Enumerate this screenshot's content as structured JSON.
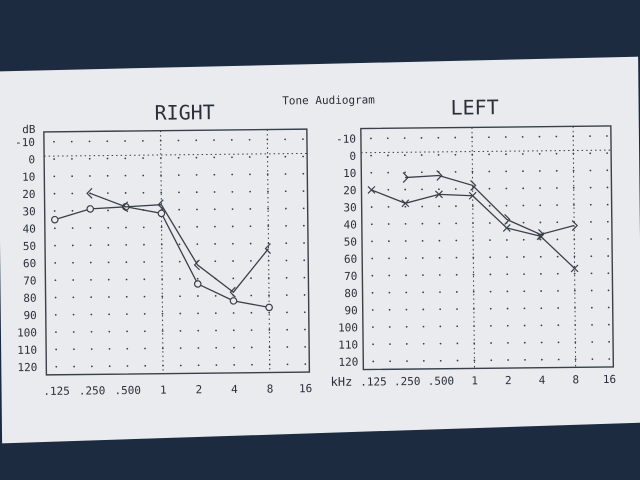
{
  "title": "Tone Audiogram",
  "ylabel": "dB",
  "xunit": "kHz",
  "ytick_labels": [
    "-10",
    "0",
    "10",
    "20",
    "30",
    "40",
    "50",
    "60",
    "70",
    "80",
    "90",
    "100",
    "110",
    "120"
  ],
  "xtick_labels": [
    ".125",
    ".250",
    ".500",
    "1",
    "2",
    "4",
    "8",
    "16"
  ],
  "colors": {
    "paper": "#e9ebee",
    "ink": "#3a3f4a",
    "background": "#1c2b40"
  },
  "chart_data": [
    {
      "type": "line",
      "title": "RIGHT",
      "xlabel": "",
      "ylabel": "dB",
      "x_scale": "log2",
      "categories": [
        0.125,
        0.25,
        0.5,
        1,
        2,
        4,
        8,
        16
      ],
      "ylim": [
        -10,
        120
      ],
      "y_inverted": true,
      "grid": true,
      "series": [
        {
          "marker": "circle",
          "x": [
            0.125,
            0.25,
            0.5,
            1,
            2,
            4,
            8
          ],
          "values": [
            35,
            29,
            28,
            32,
            73,
            83,
            87
          ]
        },
        {
          "marker": "bracket",
          "x": [
            0.25,
            0.5,
            1,
            2,
            4,
            8
          ],
          "values": [
            20,
            28,
            27,
            62,
            78,
            53
          ]
        }
      ]
    },
    {
      "type": "line",
      "title": "LEFT",
      "xlabel": "kHz",
      "ylabel": "",
      "x_scale": "log2",
      "categories": [
        0.125,
        0.25,
        0.5,
        1,
        2,
        4,
        8,
        16
      ],
      "ylim": [
        -10,
        120
      ],
      "y_inverted": true,
      "grid": true,
      "series": [
        {
          "marker": "cross",
          "x": [
            0.125,
            0.25,
            0.5,
            1,
            2,
            4,
            8
          ],
          "values": [
            20,
            28,
            23,
            24,
            43,
            48,
            67
          ]
        },
        {
          "marker": "bracket",
          "x": [
            0.25,
            0.5,
            1,
            2,
            4,
            8
          ],
          "values": [
            13,
            12,
            18,
            38,
            47,
            42
          ]
        }
      ]
    }
  ]
}
